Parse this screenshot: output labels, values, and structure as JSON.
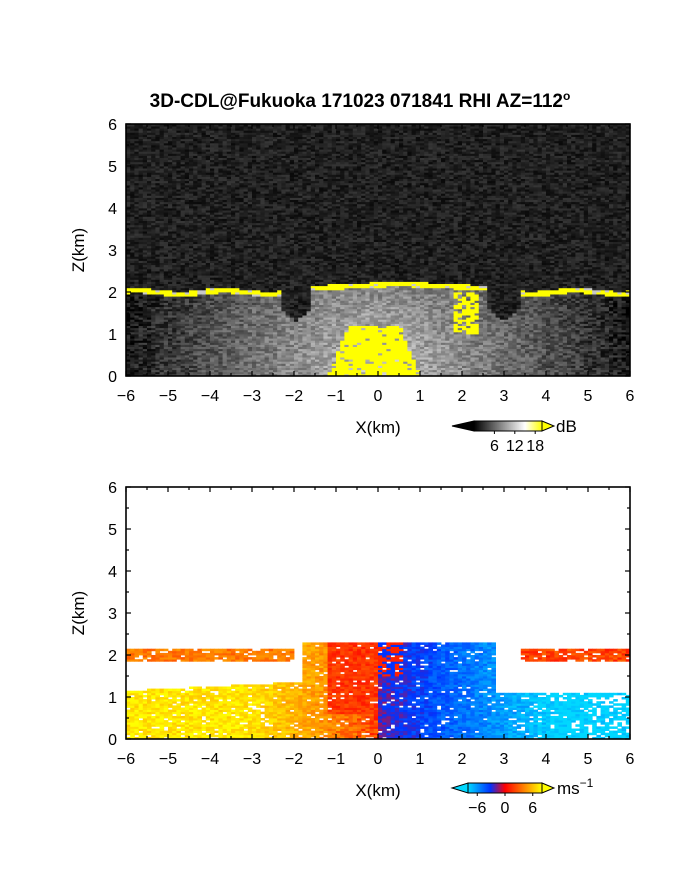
{
  "figure": {
    "title": "3D-CDL@Fukuoka 171023 071841 RHI AZ=112",
    "title_superscript": "o"
  },
  "chart_data": [
    {
      "type": "heatmap",
      "name": "backscatter",
      "xlabel": "X(km)",
      "ylabel": "Z(km)",
      "xlim": [
        -6,
        6
      ],
      "ylim": [
        0,
        6
      ],
      "xticks": [
        "−6",
        "−5",
        "−4",
        "−3",
        "−2",
        "−1",
        "0",
        "1",
        "2",
        "3",
        "4",
        "5",
        "6"
      ],
      "yticks": [
        "0",
        "1",
        "2",
        "3",
        "4",
        "5",
        "6"
      ],
      "colorbar": {
        "unit": "dB",
        "ticks": [
          "6",
          "12",
          "18"
        ],
        "tick_values": [
          6,
          12,
          18
        ],
        "range": [
          0,
          20
        ],
        "colors": [
          "#000000",
          "#ffffff",
          "#ffff00"
        ]
      },
      "features": {
        "cloud_base_km": 2.0,
        "strong_echo_core_km": {
          "x": [
            -1.2,
            1.0
          ],
          "z": [
            0,
            1.2
          ]
        },
        "noise_above_km": 2.2
      }
    },
    {
      "type": "heatmap",
      "name": "doppler_velocity",
      "xlabel": "X(km)",
      "ylabel": "Z(km)",
      "xlim": [
        -6,
        6
      ],
      "ylim": [
        0,
        6
      ],
      "xticks": [
        "−6",
        "−5",
        "−4",
        "−3",
        "−2",
        "−1",
        "0",
        "1",
        "2",
        "3",
        "4",
        "5",
        "6"
      ],
      "yticks": [
        "0",
        "1",
        "2",
        "3",
        "4",
        "5",
        "6"
      ],
      "colorbar": {
        "unit": "ms",
        "unit_superscript": "−1",
        "ticks": [
          "−6",
          "0",
          "6"
        ],
        "tick_values": [
          -6,
          0,
          6
        ],
        "range": [
          -8,
          8
        ],
        "colors": [
          "#00ccff",
          "#0033ff",
          "#ff0000",
          "#ffff00"
        ]
      },
      "features": {
        "positive_side": "x<0",
        "negative_side": "x>0",
        "top_of_data_km": 2.3
      }
    }
  ]
}
